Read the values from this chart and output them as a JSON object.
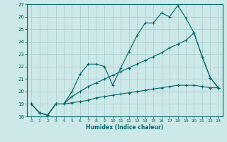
{
  "xlabel": "Humidex (Indice chaleur)",
  "background_color": "#cce8e8",
  "grid_color": "#aacccc",
  "line_color": "#006666",
  "x_values": [
    0,
    1,
    2,
    3,
    4,
    5,
    6,
    7,
    8,
    9,
    10,
    11,
    12,
    13,
    14,
    15,
    16,
    17,
    18,
    19,
    20,
    21,
    22,
    23
  ],
  "s1": [
    19.0,
    18.3,
    18.1,
    19.0,
    19.0,
    20.0,
    21.4,
    22.2,
    22.2,
    22.0,
    20.5,
    21.9,
    23.2,
    24.5,
    25.5,
    25.5,
    26.3,
    26.0,
    26.9,
    25.9,
    24.7,
    22.8,
    21.1,
    20.3
  ],
  "s2": [
    19.0,
    18.3,
    18.1,
    19.0,
    19.0,
    19.6,
    20.0,
    20.4,
    20.7,
    21.0,
    21.3,
    21.6,
    21.9,
    22.2,
    22.5,
    22.8,
    23.1,
    23.5,
    23.8,
    24.1,
    24.7,
    22.8,
    21.1,
    20.3
  ],
  "s3": [
    19.0,
    18.3,
    18.1,
    19.0,
    19.0,
    19.1,
    19.2,
    19.3,
    19.5,
    19.6,
    19.7,
    19.8,
    19.9,
    20.0,
    20.1,
    20.2,
    20.3,
    20.4,
    20.5,
    20.5,
    20.5,
    20.4,
    20.3,
    20.3
  ],
  "ylim": [
    18,
    27
  ],
  "xlim": [
    -0.5,
    23.5
  ],
  "yticks": [
    18,
    19,
    20,
    21,
    22,
    23,
    24,
    25,
    26,
    27
  ],
  "xticks": [
    0,
    1,
    2,
    3,
    4,
    5,
    6,
    7,
    8,
    9,
    10,
    11,
    12,
    13,
    14,
    15,
    16,
    17,
    18,
    19,
    20,
    21,
    22,
    23
  ]
}
